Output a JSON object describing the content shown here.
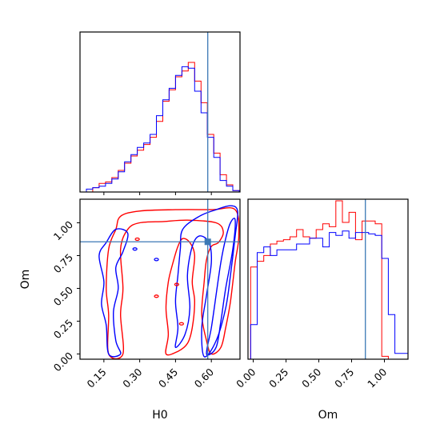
{
  "chart_data": {
    "type": "corner",
    "parameters": [
      "H0",
      "Om"
    ],
    "truths": {
      "H0": 0.585,
      "Om": 0.855
    },
    "colors": {
      "run_a": "#ff0000",
      "run_b": "#0000ff",
      "truth": "#3b78b5"
    },
    "panels": [
      {
        "id": "hist-H0",
        "type": "histogram",
        "x_param": "H0",
        "xlim": [
          0.05,
          0.72
        ],
        "x_ticks": [
          0.15,
          0.3,
          0.45,
          0.6
        ],
        "show_tick_labels": false,
        "bin_edges": [
          0.05,
          0.0767,
          0.1033,
          0.13,
          0.1567,
          0.1833,
          0.21,
          0.2367,
          0.2633,
          0.29,
          0.3167,
          0.3433,
          0.37,
          0.3967,
          0.4233,
          0.45,
          0.4767,
          0.5033,
          0.53,
          0.5567,
          0.5833,
          0.61,
          0.6367,
          0.6633,
          0.69,
          0.7167
        ],
        "series": [
          {
            "color_key": "run_a",
            "values": [
              0,
              0,
              0.03,
              0.06,
              0.07,
              0.1,
              0.15,
              0.2,
              0.25,
              0.29,
              0.33,
              0.38,
              0.49,
              0.63,
              0.71,
              0.8,
              0.84,
              0.9,
              0.77,
              0.62,
              0.4,
              0.27,
              0.12,
              0.05,
              0.01
            ]
          },
          {
            "color_key": "run_b",
            "values": [
              0,
              0.02,
              0.03,
              0.04,
              0.06,
              0.09,
              0.14,
              0.21,
              0.26,
              0.31,
              0.34,
              0.4,
              0.53,
              0.64,
              0.72,
              0.81,
              0.87,
              0.86,
              0.7,
              0.55,
              0.38,
              0.24,
              0.08,
              0.04,
              0.01
            ]
          }
        ]
      },
      {
        "id": "contour-H0-Om",
        "type": "contour",
        "x_param": "H0",
        "y_param": "Om",
        "xlim": [
          0.05,
          0.72
        ],
        "ylim": [
          -0.04,
          1.18
        ],
        "x_ticks": [
          0.15,
          0.3,
          0.45,
          0.6
        ],
        "y_ticks": [
          0.0,
          0.25,
          0.5,
          0.75,
          1.0
        ],
        "x_tick_labels": [
          "0.15",
          "0.30",
          "0.45",
          "0.60"
        ],
        "y_tick_labels": [
          "0.00",
          "0.25",
          "0.50",
          "0.75",
          "1.00"
        ],
        "xlabel": "H0",
        "ylabel": "Om",
        "contours": [
          {
            "color_key": "run_a",
            "points": [
              [
                0.17,
                0.0
              ],
              [
                0.17,
                0.3
              ],
              [
                0.16,
                0.5
              ],
              [
                0.17,
                0.8
              ],
              [
                0.2,
                0.95
              ],
              [
                0.22,
                1.05
              ],
              [
                0.3,
                1.09
              ],
              [
                0.45,
                1.1
              ],
              [
                0.6,
                1.1
              ],
              [
                0.7,
                1.1
              ],
              [
                0.715,
                0.9
              ],
              [
                0.7,
                0.7
              ],
              [
                0.68,
                0.4
              ],
              [
                0.66,
                0.2
              ],
              [
                0.64,
                0.05
              ],
              [
                0.6,
                0.0
              ],
              [
                0.58,
                0.1
              ],
              [
                0.56,
                0.3
              ],
              [
                0.57,
                0.55
              ],
              [
                0.58,
                0.72
              ],
              [
                0.6,
                0.82
              ],
              [
                0.63,
                0.85
              ],
              [
                0.65,
                0.93
              ],
              [
                0.62,
                1.0
              ],
              [
                0.5,
                1.02
              ],
              [
                0.4,
                1.01
              ],
              [
                0.3,
                1.0
              ],
              [
                0.25,
                0.95
              ],
              [
                0.22,
                0.8
              ],
              [
                0.23,
                0.5
              ],
              [
                0.22,
                0.3
              ],
              [
                0.23,
                0.0
              ]
            ]
          },
          {
            "color_key": "run_a",
            "points": [
              [
                0.41,
                0.0
              ],
              [
                0.42,
                0.15
              ],
              [
                0.41,
                0.35
              ],
              [
                0.42,
                0.55
              ],
              [
                0.44,
                0.7
              ],
              [
                0.46,
                0.82
              ],
              [
                0.48,
                0.88
              ],
              [
                0.51,
                0.85
              ],
              [
                0.53,
                0.75
              ],
              [
                0.52,
                0.55
              ],
              [
                0.53,
                0.4
              ],
              [
                0.52,
                0.2
              ],
              [
                0.5,
                0.08
              ],
              [
                0.46,
                0.02
              ]
            ]
          },
          {
            "color_key": "run_b",
            "points": [
              [
                0.17,
                0.0
              ],
              [
                0.16,
                0.22
              ],
              [
                0.14,
                0.38
              ],
              [
                0.15,
                0.55
              ],
              [
                0.13,
                0.75
              ],
              [
                0.16,
                0.85
              ],
              [
                0.2,
                0.95
              ],
              [
                0.25,
                0.92
              ],
              [
                0.23,
                0.78
              ],
              [
                0.2,
                0.66
              ],
              [
                0.21,
                0.5
              ],
              [
                0.19,
                0.32
              ],
              [
                0.2,
                0.1
              ],
              [
                0.22,
                0.0
              ]
            ]
          },
          {
            "color_key": "run_b",
            "points": [
              [
                0.45,
                0.05
              ],
              [
                0.46,
                0.2
              ],
              [
                0.45,
                0.4
              ],
              [
                0.46,
                0.6
              ],
              [
                0.47,
                0.8
              ],
              [
                0.48,
                0.95
              ],
              [
                0.55,
                1.05
              ],
              [
                0.62,
                1.1
              ],
              [
                0.68,
                1.13
              ],
              [
                0.71,
                1.09
              ],
              [
                0.7,
                0.9
              ],
              [
                0.68,
                0.6
              ],
              [
                0.66,
                0.35
              ],
              [
                0.62,
                0.1
              ],
              [
                0.57,
                -0.02
              ],
              [
                0.56,
                0.2
              ],
              [
                0.58,
                0.45
              ],
              [
                0.6,
                0.7
              ],
              [
                0.59,
                0.85
              ],
              [
                0.55,
                0.9
              ],
              [
                0.52,
                0.82
              ],
              [
                0.5,
                0.6
              ],
              [
                0.51,
                0.35
              ],
              [
                0.49,
                0.15
              ]
            ]
          },
          {
            "color_key": "run_b",
            "points": [
              [
                0.58,
                0.0
              ],
              [
                0.6,
                0.2
              ],
              [
                0.62,
                0.45
              ],
              [
                0.64,
                0.7
              ],
              [
                0.66,
                0.88
              ],
              [
                0.68,
                1.0
              ],
              [
                0.7,
                1.02
              ],
              [
                0.69,
                0.8
              ],
              [
                0.66,
                0.5
              ],
              [
                0.64,
                0.25
              ],
              [
                0.62,
                0.05
              ]
            ]
          }
        ],
        "small_marks": [
          {
            "color_key": "run_a",
            "x": 0.29,
            "y": 0.875
          },
          {
            "color_key": "run_b",
            "x": 0.28,
            "y": 0.8
          },
          {
            "color_key": "run_b",
            "x": 0.37,
            "y": 0.72
          },
          {
            "color_key": "run_a",
            "x": 0.455,
            "y": 0.53
          },
          {
            "color_key": "run_a",
            "x": 0.37,
            "y": 0.44
          },
          {
            "color_key": "run_a",
            "x": 0.475,
            "y": 0.23
          }
        ]
      },
      {
        "id": "hist-Om",
        "type": "histogram",
        "x_param": "Om",
        "xlim": [
          -0.04,
          1.18
        ],
        "x_ticks": [
          0.0,
          0.25,
          0.5,
          0.75,
          1.0
        ],
        "x_tick_labels": [
          "0.00",
          "0.25",
          "0.50",
          "0.75",
          "1.00"
        ],
        "xlabel": "Om",
        "bin_edges": [
          -0.02,
          0.03,
          0.08,
          0.13,
          0.18,
          0.23,
          0.28,
          0.33,
          0.38,
          0.43,
          0.48,
          0.53,
          0.58,
          0.63,
          0.68,
          0.73,
          0.78,
          0.83,
          0.88,
          0.93,
          0.98,
          1.03,
          1.08,
          1.13,
          1.18
        ],
        "series": [
          {
            "color_key": "run_a",
            "values": [
              0.64,
              0.68,
              0.72,
              0.8,
              0.82,
              0.83,
              0.85,
              0.9,
              0.85,
              0.84,
              0.9,
              0.94,
              0.92,
              1.1,
              0.95,
              1.02,
              0.83,
              0.96,
              0.96,
              0.94,
              0.02,
              0,
              0,
              0
            ]
          },
          {
            "color_key": "run_b",
            "values": [
              0.24,
              0.74,
              0.78,
              0.72,
              0.76,
              0.76,
              0.76,
              0.8,
              0.8,
              0.84,
              0.84,
              0.78,
              0.88,
              0.86,
              0.89,
              0.84,
              0.88,
              0.88,
              0.87,
              0.86,
              0.7,
              0.31,
              0.04,
              0.04
            ]
          }
        ]
      }
    ]
  }
}
